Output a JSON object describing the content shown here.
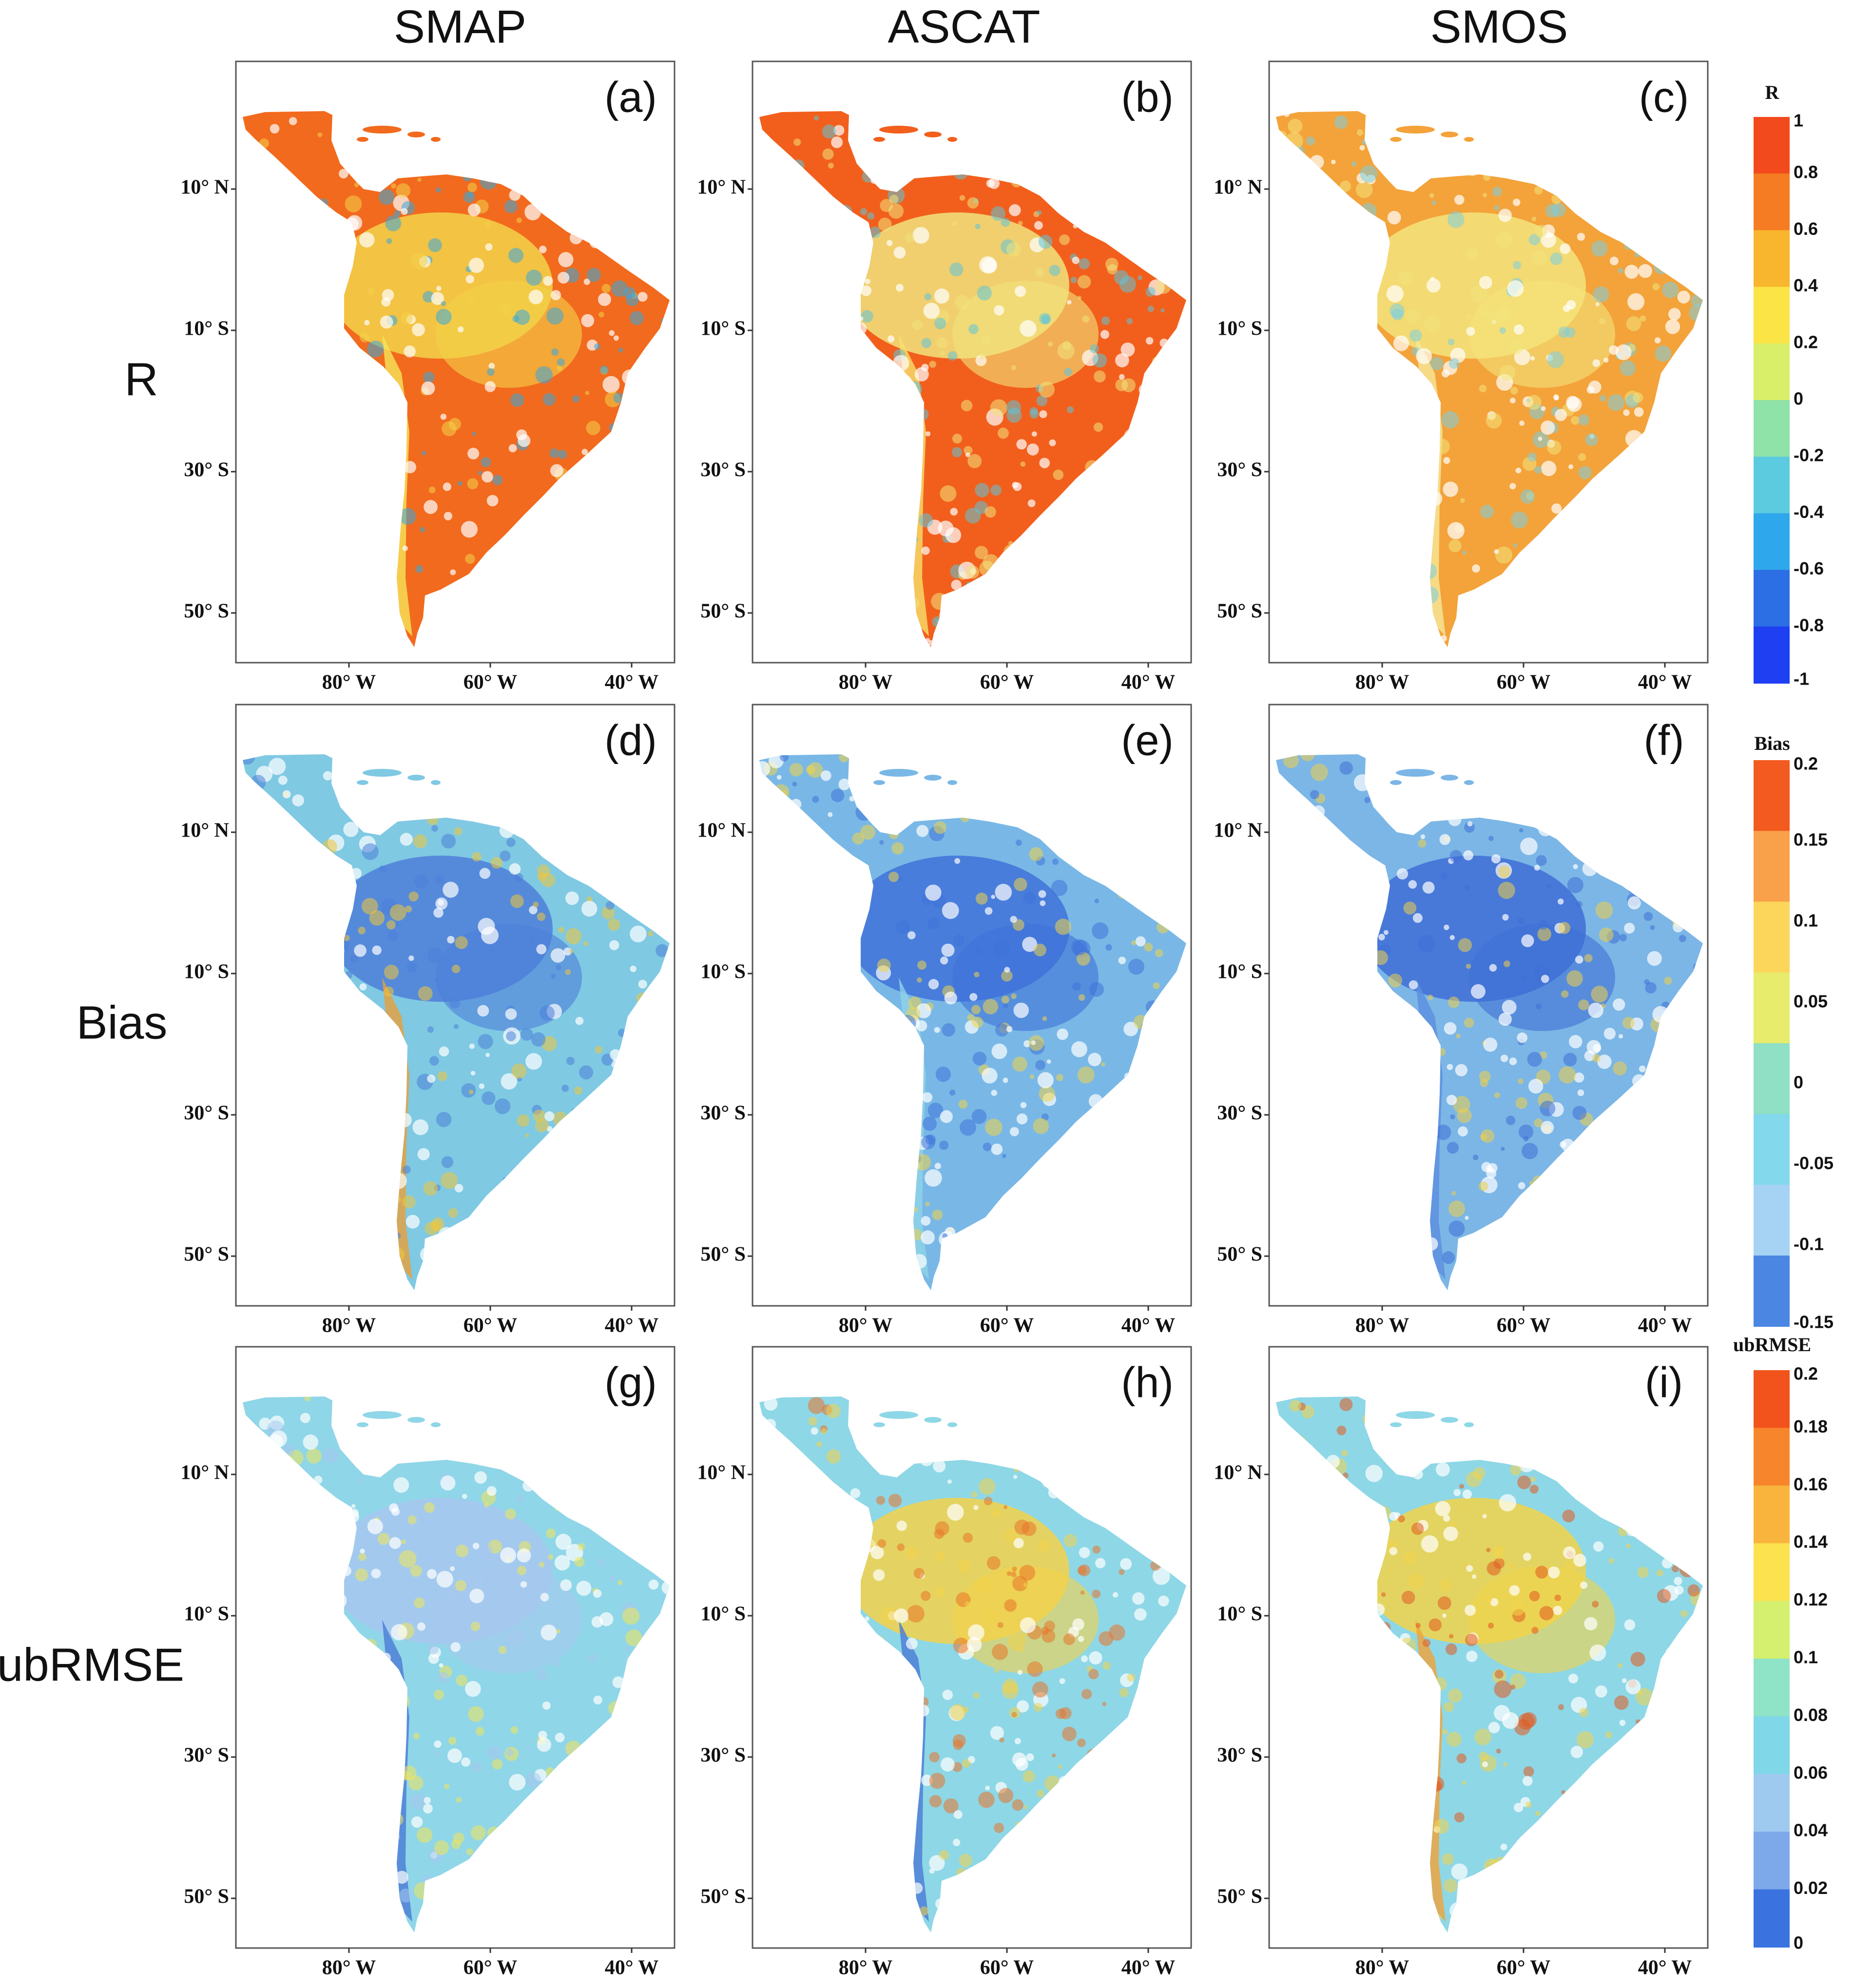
{
  "figure": {
    "column_titles": [
      "SMAP",
      "ASCAT",
      "SMOS"
    ],
    "row_titles": [
      "R",
      "Bias",
      "ubRMSE"
    ],
    "latitude_ticks": [
      "10° N",
      "10° S",
      "30° S",
      "50° S"
    ],
    "longitude_ticks": [
      "80° W",
      "60° W",
      "40° W"
    ],
    "panels": [
      {
        "label": "(a)",
        "row": 0,
        "col": 0,
        "dominant_color": "#f26a1d",
        "interior_color": "#f3d24a",
        "accent_color": "#38a7de",
        "coast_color": "#f6e55a"
      },
      {
        "label": "(b)",
        "row": 0,
        "col": 1,
        "dominant_color": "#f25f1c",
        "interior_color": "#f1e37c",
        "accent_color": "#5fc4d9",
        "coast_color": "#f6e06a"
      },
      {
        "label": "(c)",
        "row": 0,
        "col": 2,
        "dominant_color": "#f3a33a",
        "interior_color": "#f3e47c",
        "accent_color": "#7ccfe2",
        "coast_color": "#f6e79a"
      },
      {
        "label": "(d)",
        "row": 1,
        "col": 0,
        "dominant_color": "#7fc9e3",
        "interior_color": "#4d7fd9",
        "accent_color": "#f1c73a",
        "coast_color": "#e8a03a"
      },
      {
        "label": "(e)",
        "row": 1,
        "col": 1,
        "dominant_color": "#79b8e6",
        "interior_color": "#3f72d8",
        "accent_color": "#f1d34a",
        "coast_color": "#8fd3e8"
      },
      {
        "label": "(f)",
        "row": 1,
        "col": 2,
        "dominant_color": "#7bb6e6",
        "interior_color": "#3f6fd6",
        "accent_color": "#f0cf4a",
        "coast_color": "#5d8fe0"
      },
      {
        "label": "(g)",
        "row": 2,
        "col": 0,
        "dominant_color": "#8fd6e8",
        "interior_color": "#a7c8ef",
        "accent_color": "#f2e65a",
        "coast_color": "#4a7ad6"
      },
      {
        "label": "(h)",
        "row": 2,
        "col": 1,
        "dominant_color": "#8ed7e6",
        "interior_color": "#f3d24a",
        "accent_color": "#e8742a",
        "coast_color": "#4a7ad6"
      },
      {
        "label": "(i)",
        "row": 2,
        "col": 2,
        "dominant_color": "#8ed7e6",
        "interior_color": "#f2d44a",
        "accent_color": "#e25a1f",
        "coast_color": "#f1a33a"
      }
    ],
    "colorbars": [
      {
        "title": "R",
        "ticks": [
          "1",
          "0.8",
          "0.6",
          "0.4",
          "0.2",
          "0",
          "-0.2",
          "-0.4",
          "-0.6",
          "-0.8",
          "-1"
        ],
        "colors": [
          "#f24a1c",
          "#f57c22",
          "#f8b52e",
          "#fbe446",
          "#d9ef6a",
          "#8fe2a8",
          "#5ccbe0",
          "#2fa7ec",
          "#2c6fe4",
          "#1f3ff2"
        ]
      },
      {
        "title": "Bias",
        "ticks": [
          "0.2",
          "0.15",
          "0.1",
          "0.05",
          "0",
          "-0.05",
          "-0.1",
          "-0.15"
        ],
        "colors": [
          "#f25a1f",
          "#f9a04a",
          "#fbd65a",
          "#e7ec6c",
          "#8fe0c4",
          "#83d8ec",
          "#a6d3f4",
          "#4b86e3"
        ]
      },
      {
        "title": "ubRMSE",
        "ticks": [
          "0.2",
          "0.18",
          "0.16",
          "0.14",
          "0.12",
          "0.1",
          "0.08",
          "0.06",
          "0.04",
          "0.02",
          "0"
        ],
        "colors": [
          "#f2531c",
          "#f7852c",
          "#f9b43e",
          "#fbe24e",
          "#d5ef6e",
          "#8fe3c6",
          "#7fd7e8",
          "#9fcaf0",
          "#7da9ea",
          "#3a73e0"
        ]
      }
    ]
  }
}
